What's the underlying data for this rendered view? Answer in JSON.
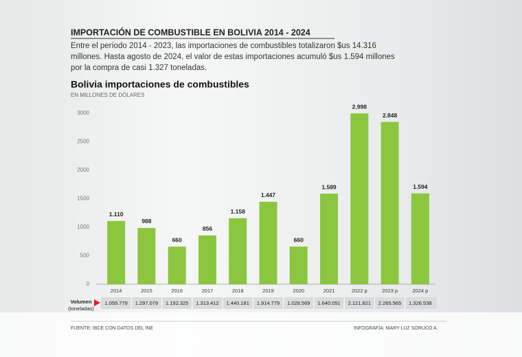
{
  "header": {
    "title": "IMPORTACIÓN DE COMBUSTIBLE EN BOLIVIA 2014 - 2024",
    "intro": "Entre el período 2014 - 2023, las importaciones de combustibles totalizaron $us 14.316 millones. Hasta agosto de 2024, el valor de estas importaciones acumuló $us 1.594 millones por la compra de casi 1.327 toneladas."
  },
  "chart_data": {
    "type": "bar",
    "title": "Bolivia importaciones de combustibles",
    "subtitle": "EN MILLONES DE DÓLARES",
    "categories": [
      "2014",
      "2015",
      "2016",
      "2017",
      "2018",
      "2019",
      "2020",
      "2021",
      "2022 p",
      "2023 p",
      "2024 p"
    ],
    "values": [
      1110,
      988,
      660,
      856,
      1158,
      1447,
      660,
      1589,
      2998,
      2848,
      1594
    ],
    "value_labels": [
      "1.110",
      "988",
      "660",
      "856",
      "1.158",
      "1.447",
      "660",
      "1.589",
      "2.998",
      "2.848",
      "1.594"
    ],
    "color": "#8cc63f",
    "ylim": [
      0,
      3000
    ],
    "yticks": [
      0,
      500,
      1000,
      1500,
      2000,
      2500,
      3000
    ]
  },
  "volume": {
    "label": [
      "Volumen",
      "(toneladas)"
    ],
    "values": [
      "1.059.779",
      "1.297.079",
      "1.192.325",
      "1.313.412",
      "1.440.181",
      "1.914.779",
      "1.028.569",
      "1.640.051",
      "2.121.821",
      "2.265.565",
      "1.326.538"
    ]
  },
  "footer": {
    "source": "FUENTE: IBCE CON DATOS DEL INE",
    "credit": "INFOGRAFÍA: MARY LUZ SORUCO A."
  }
}
